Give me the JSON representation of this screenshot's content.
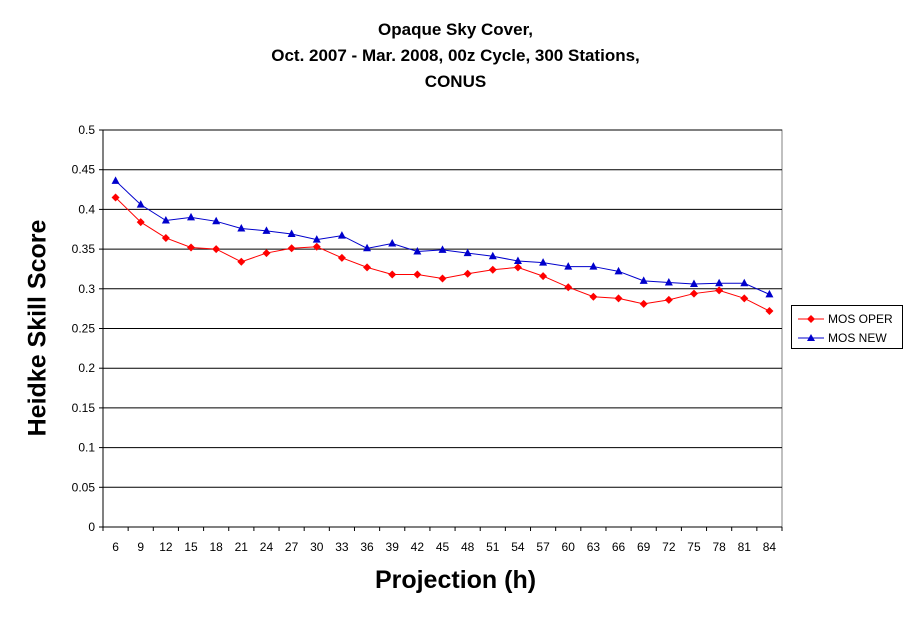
{
  "chart_data": {
    "type": "line",
    "title": [
      "Opaque Sky Cover,",
      "Oct. 2007 - Mar. 2008, 00z Cycle, 300 Stations,",
      "CONUS"
    ],
    "xlabel": "Projection (h)",
    "ylabel": "Heidke Skill Score",
    "ylim": [
      0,
      0.5
    ],
    "yticks": [
      "0",
      "0.05",
      "0.1",
      "0.15",
      "0.2",
      "0.25",
      "0.3",
      "0.35",
      "0.4",
      "0.45",
      "0.5"
    ],
    "grid": "horizontal",
    "legend_position": "right",
    "x": [
      "6",
      "9",
      "12",
      "15",
      "18",
      "21",
      "24",
      "27",
      "30",
      "33",
      "36",
      "39",
      "42",
      "45",
      "48",
      "51",
      "54",
      "57",
      "60",
      "63",
      "66",
      "69",
      "72",
      "75",
      "78",
      "81",
      "84"
    ],
    "series": [
      {
        "name": "MOS OPER",
        "color": "#ff0000",
        "marker": "diamond",
        "values": [
          0.415,
          0.384,
          0.364,
          0.352,
          0.35,
          0.334,
          0.345,
          0.351,
          0.353,
          0.339,
          0.327,
          0.318,
          0.318,
          0.313,
          0.319,
          0.324,
          0.327,
          0.316,
          0.302,
          0.29,
          0.288,
          0.281,
          0.286,
          0.294,
          0.298,
          0.288,
          0.272
        ]
      },
      {
        "name": "MOS NEW",
        "color": "#0000cc",
        "marker": "triangle",
        "values": [
          0.436,
          0.406,
          0.386,
          0.39,
          0.385,
          0.376,
          0.373,
          0.369,
          0.362,
          0.367,
          0.351,
          0.357,
          0.347,
          0.349,
          0.345,
          0.341,
          0.335,
          0.333,
          0.328,
          0.328,
          0.322,
          0.31,
          0.308,
          0.306,
          0.307,
          0.307,
          0.293
        ]
      }
    ]
  }
}
